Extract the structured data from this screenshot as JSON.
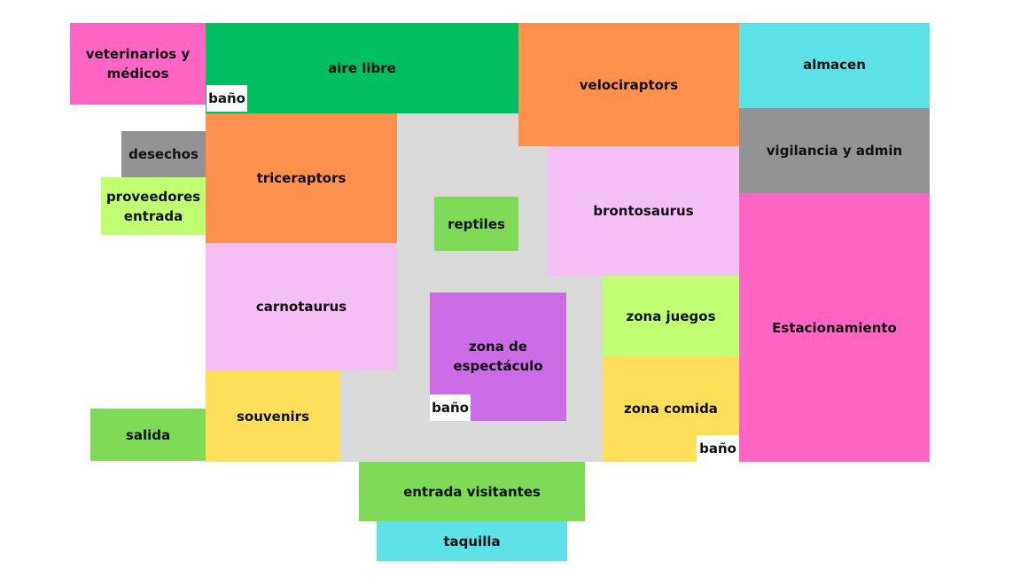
{
  "colors": {
    "pink": "#ff66c4",
    "green": "#00bf63",
    "orange": "#ff914d",
    "cyan": "#5ce1e6",
    "gray": "#939393",
    "lime": "#c1ff72",
    "light_pink": "#f4bff2",
    "light_green": "#7ed957",
    "purple": "#cb6ce6",
    "yellow": "#ffde59",
    "plaza_gray": "#d9d9d9",
    "white": "#ffffff"
  },
  "zones": {
    "veterinarios": "veterinarios y médicos",
    "aire_libre": "aire libre",
    "velociraptors": "velociraptors",
    "almacen": "almacen",
    "desechos": "desechos",
    "proveedores": "proveedores entrada",
    "triceraptors": "triceraptors",
    "reptiles": "reptiles",
    "brontosaurus": "brontosaurus",
    "vigilancia": "vigilancia y admin",
    "carnotaurus": "carnotaurus",
    "zona_espectaculo": "zona de espectáculo",
    "zona_juegos": "zona juegos",
    "estacionamiento": "Estacionamiento",
    "salida": "salida",
    "souvenirs": "souvenirs",
    "zona_comida": "zona comida",
    "entrada_visitantes": "entrada visitantes",
    "taquilla": "taquilla"
  },
  "restrooms": {
    "bano_aire_libre": "baño",
    "bano_espectaculo": "baño",
    "bano_comida": "baño"
  }
}
